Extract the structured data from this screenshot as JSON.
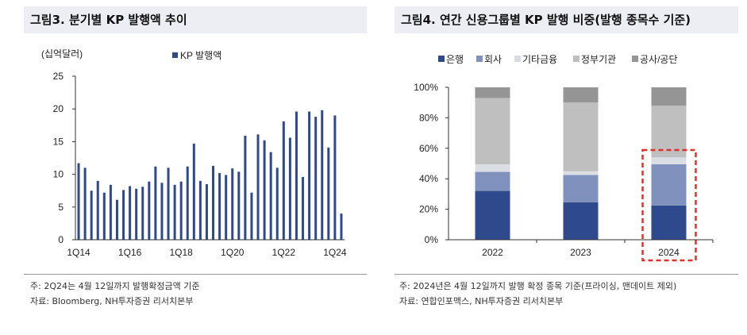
{
  "left": {
    "title": "그림3. 분기별 KP 발행액 추이",
    "note1": "주: 2Q24는 4월 12일까지 발행확정금액 기준",
    "note2": "자료: Bloomberg, NH투자증권 리서치본부"
  },
  "right": {
    "title": "그림4. 연간 신용그룹별 KP 발행 비중(발행 종목수 기준)",
    "note1": "주: 2024년은 4월 12일까지 발행 확정 종목 기준(프라이싱, 맨데이트 제외)",
    "note2": "자료: 연합인포맥스, NH투자증권 리서치본부"
  },
  "chart_data": [
    {
      "type": "bar",
      "title": "분기별 KP 발행액 추이",
      "ylabel": "(십억달러)",
      "legend": "KP 발행액",
      "color": "#2E4A8C",
      "ylim": [
        0,
        25
      ],
      "yticks": [
        "0",
        "5",
        "10",
        "15",
        "20",
        "25"
      ],
      "xtick_labels": [
        "1Q14",
        "1Q16",
        "1Q18",
        "1Q20",
        "1Q22",
        "1Q24"
      ],
      "xtick_indices": [
        0,
        8,
        16,
        24,
        32,
        40
      ],
      "categories": [
        "1Q14",
        "2Q14",
        "3Q14",
        "4Q14",
        "1Q15",
        "2Q15",
        "3Q15",
        "4Q15",
        "1Q16",
        "2Q16",
        "3Q16",
        "4Q16",
        "1Q17",
        "2Q17",
        "3Q17",
        "4Q17",
        "1Q18",
        "2Q18",
        "3Q18",
        "4Q18",
        "1Q19",
        "2Q19",
        "3Q19",
        "4Q19",
        "1Q20",
        "2Q20",
        "3Q20",
        "4Q20",
        "1Q21",
        "2Q21",
        "3Q21",
        "4Q21",
        "1Q22",
        "2Q22",
        "3Q22",
        "4Q22",
        "1Q23",
        "2Q23",
        "3Q23",
        "4Q23",
        "1Q24",
        "2Q24"
      ],
      "values": [
        11.7,
        11.0,
        7.5,
        9.0,
        7.2,
        8.4,
        6.1,
        7.6,
        8.2,
        7.8,
        8.1,
        8.9,
        11.2,
        8.7,
        11.0,
        8.4,
        8.9,
        11.2,
        14.7,
        9.0,
        8.5,
        11.3,
        10.2,
        9.9,
        10.9,
        10.4,
        15.9,
        7.2,
        16.1,
        15.2,
        13.4,
        11.0,
        18.1,
        15.6,
        19.6,
        9.6,
        19.6,
        18.8,
        19.8,
        14.1,
        19.0,
        4.0
      ]
    },
    {
      "type": "bar",
      "stacked": true,
      "title": "연간 신용그룹별 KP 발행 비중",
      "ylim": [
        0,
        100
      ],
      "yticks": [
        "0%",
        "20%",
        "40%",
        "60%",
        "80%",
        "100%"
      ],
      "categories": [
        "2022",
        "2023",
        "2024"
      ],
      "highlight": "2024",
      "series": [
        {
          "name": "은행",
          "color": "#2E4A8C",
          "values": [
            32,
            24.5,
            22.5
          ]
        },
        {
          "name": "회사",
          "color": "#8091BD",
          "values": [
            12.5,
            18,
            27
          ]
        },
        {
          "name": "기타금융",
          "color": "#DADDE3",
          "values": [
            5,
            2.5,
            4.5
          ]
        },
        {
          "name": "정부기관",
          "color": "#BFBFBF",
          "values": [
            43.5,
            45,
            34
          ]
        },
        {
          "name": "공사/공단",
          "color": "#959595",
          "values": [
            7,
            10,
            12
          ]
        }
      ]
    }
  ]
}
